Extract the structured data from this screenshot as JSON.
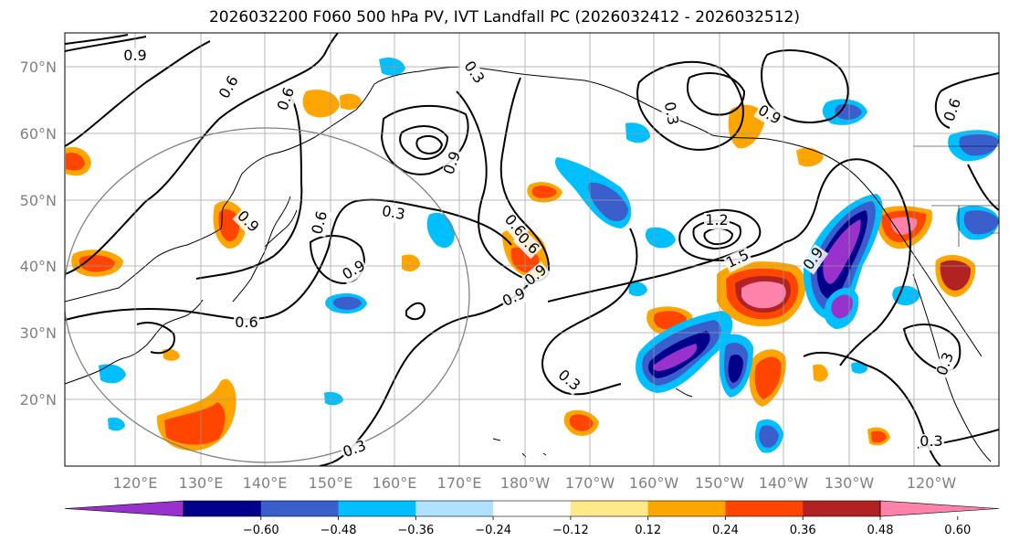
{
  "title": "2026032200 F060 500 hPa PV, IVT Landfall PC (2026032412 - 2026032512)",
  "lat_labels": [
    "70°N",
    "60°N",
    "50°N",
    "40°N",
    "30°N",
    "20°N"
  ],
  "lon_labels": [
    "120°E",
    "130°E",
    "140°E",
    "150°E",
    "160°E",
    "170°E",
    "180°W",
    "170°W",
    "160°W",
    "150°W",
    "140°W",
    "130°W",
    "120°W"
  ],
  "colorbar": {
    "colors": [
      "#9932cc",
      "#00008b",
      "#3a5fcd",
      "#00bfff",
      "#b0e2ff",
      "#ffffff",
      "#ffe989",
      "#ffa500",
      "#ff4500",
      "#b22222",
      "#ff82ab"
    ],
    "tick_labels": [
      "−0.60",
      "−0.48",
      "−0.36",
      "−0.24",
      "−0.12",
      "0.12",
      "0.24",
      "0.36",
      "0.48",
      "0.60"
    ]
  },
  "contour_labels": [
    {
      "text": "0.9"
    },
    {
      "text": "0.6"
    },
    {
      "text": "0.6"
    },
    {
      "text": "0.3"
    },
    {
      "text": "0.9"
    },
    {
      "text": "0.6"
    },
    {
      "text": "0.9"
    },
    {
      "text": "0.6"
    },
    {
      "text": "0.3"
    },
    {
      "text": "0.9"
    },
    {
      "text": "0.6"
    },
    {
      "text": "0.9"
    },
    {
      "text": "0.3"
    },
    {
      "text": "0.6"
    },
    {
      "text": "0.9"
    },
    {
      "text": "1.2"
    },
    {
      "text": "1.5"
    },
    {
      "text": "0.9"
    },
    {
      "text": "0.3"
    },
    {
      "text": "0.3"
    },
    {
      "text": "0.3"
    },
    {
      "text": "0.3"
    },
    {
      "text": "0.6"
    },
    {
      "text": "0.9"
    }
  ],
  "anomaly_blobs": [
    {
      "color": "#ffa500"
    },
    {
      "color": "#ff4500"
    },
    {
      "color": "#ff82ab"
    },
    {
      "color": "#b22222"
    },
    {
      "color": "#00bfff"
    },
    {
      "color": "#3a5fcd"
    },
    {
      "color": "#00008b"
    },
    {
      "color": "#9932cc"
    }
  ]
}
